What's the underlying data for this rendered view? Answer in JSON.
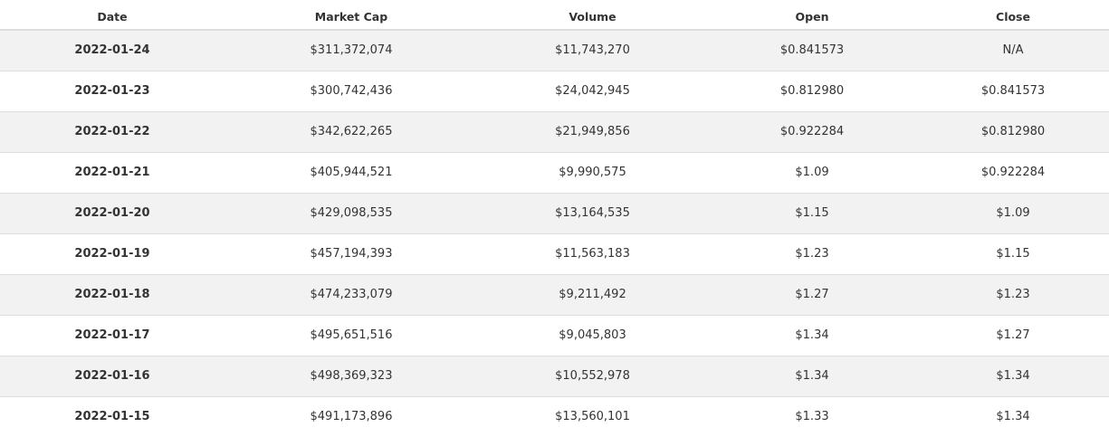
{
  "table": {
    "headers": [
      "Date",
      "Market Cap",
      "Volume",
      "Open",
      "Close"
    ],
    "rows": [
      [
        "2022-01-24",
        "$311,372,074",
        "$11,743,270",
        "$0.841573",
        "N/A"
      ],
      [
        "2022-01-23",
        "$300,742,436",
        "$24,042,945",
        "$0.812980",
        "$0.841573"
      ],
      [
        "2022-01-22",
        "$342,622,265",
        "$21,949,856",
        "$0.922284",
        "$0.812980"
      ],
      [
        "2022-01-21",
        "$405,944,521",
        "$9,990,575",
        "$1.09",
        "$0.922284"
      ],
      [
        "2022-01-20",
        "$429,098,535",
        "$13,164,535",
        "$1.15",
        "$1.09"
      ],
      [
        "2022-01-19",
        "$457,194,393",
        "$11,563,183",
        "$1.23",
        "$1.15"
      ],
      [
        "2022-01-18",
        "$474,233,079",
        "$9,211,492",
        "$1.27",
        "$1.23"
      ],
      [
        "2022-01-17",
        "$495,651,516",
        "$9,045,803",
        "$1.34",
        "$1.27"
      ],
      [
        "2022-01-16",
        "$498,369,323",
        "$10,552,978",
        "$1.34",
        "$1.34"
      ],
      [
        "2022-01-15",
        "$491,173,896",
        "$13,560,101",
        "$1.33",
        "$1.34"
      ]
    ]
  },
  "colors": {
    "header_text": "#333333",
    "row_stripe": "#f2f2f2",
    "row_plain": "#ffffff",
    "divider": "#dddddd"
  }
}
